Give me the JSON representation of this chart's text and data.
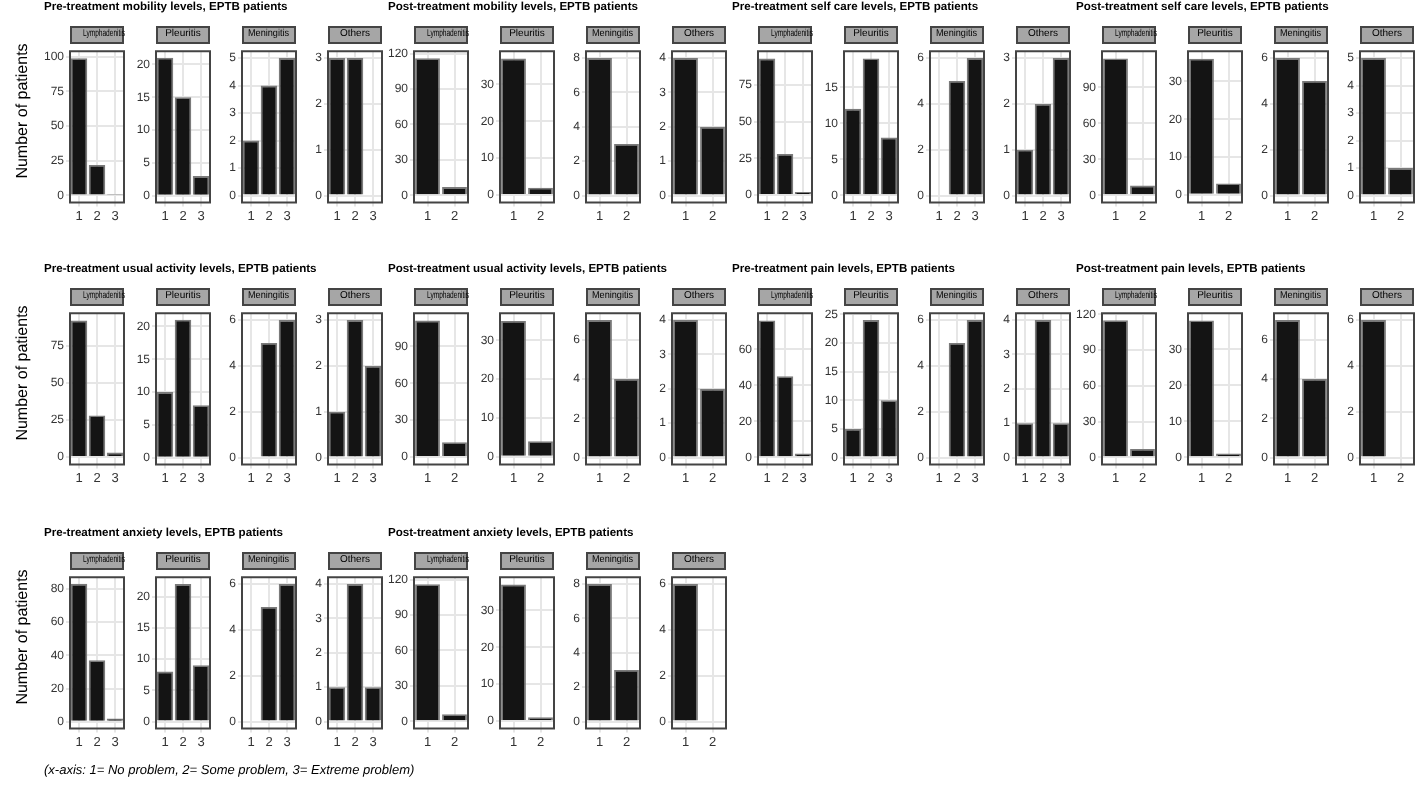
{
  "chart_data": [
    {
      "type": "bar",
      "title": "Pre-treatment mobility levels, EPTB patients",
      "subtitle": "Lymphadenitis",
      "ylabel": "Number of patients",
      "categories": [
        "1",
        "2",
        "3"
      ],
      "values": [
        99,
        22,
        1
      ],
      "color": "#141414",
      "ylim": [
        -5,
        104
      ],
      "yticks": [
        0,
        25,
        50,
        75,
        100
      ],
      "grid": true
    },
    {
      "type": "bar",
      "subtitle": "Pleuritis",
      "categories": [
        "1",
        "2",
        "3"
      ],
      "values": [
        21,
        15,
        3
      ],
      "color": "#141414",
      "ylim": [
        -1,
        22
      ],
      "yticks": [
        0,
        5,
        10,
        15,
        20
      ],
      "grid": true
    },
    {
      "type": "bar",
      "subtitle": "Meningitis",
      "categories": [
        "1",
        "2",
        "3"
      ],
      "values": [
        2,
        4,
        5
      ],
      "color": "#141414",
      "ylim": [
        -0.25,
        5.25
      ],
      "yticks": [
        0,
        1,
        2,
        3,
        4,
        5
      ],
      "grid": true
    },
    {
      "type": "bar",
      "subtitle": "Others",
      "categories": [
        "1",
        "2",
        "3"
      ],
      "values": [
        3,
        3,
        null
      ],
      "color": "#141414",
      "ylim": [
        -0.15,
        3.15
      ],
      "yticks": [
        0,
        1,
        2,
        3
      ],
      "grid": true
    },
    {
      "type": "bar",
      "title": "Post-treatment mobility levels, EPTB patients",
      "subtitle": "Lymphadenitis",
      "categories": [
        "1",
        "2"
      ],
      "values": [
        116,
        7
      ],
      "color": "#141414",
      "ylim": [
        -6,
        122
      ],
      "yticks": [
        0,
        30,
        60,
        90,
        120
      ],
      "grid": true
    },
    {
      "type": "bar",
      "subtitle": "Pleuritis",
      "categories": [
        "1",
        "2"
      ],
      "values": [
        37,
        2
      ],
      "color": "#141414",
      "ylim": [
        -2,
        39
      ],
      "yticks": [
        0,
        10,
        20,
        30
      ],
      "grid": true
    },
    {
      "type": "bar",
      "subtitle": "Meningitis",
      "categories": [
        "1",
        "2"
      ],
      "values": [
        8,
        3
      ],
      "color": "#141414",
      "ylim": [
        -0.4,
        8.4
      ],
      "yticks": [
        0,
        2,
        4,
        6,
        8
      ],
      "grid": true
    },
    {
      "type": "bar",
      "subtitle": "Others",
      "categories": [
        "1",
        "2"
      ],
      "values": [
        4,
        2
      ],
      "color": "#141414",
      "ylim": [
        -0.2,
        4.2
      ],
      "yticks": [
        0,
        1,
        2,
        3,
        4
      ],
      "grid": true
    },
    {
      "type": "bar",
      "title": "Pre-treatment self care levels, EPTB patients",
      "subtitle": "Lymphadenitis",
      "categories": [
        "1",
        "2",
        "3"
      ],
      "values": [
        93,
        28,
        2
      ],
      "color": "#141414",
      "ylim": [
        -5,
        98
      ],
      "yticks": [
        0,
        25,
        50,
        75
      ],
      "grid": true
    },
    {
      "type": "bar",
      "subtitle": "Pleuritis",
      "categories": [
        "1",
        "2",
        "3"
      ],
      "values": [
        12,
        19,
        8
      ],
      "color": "#141414",
      "ylim": [
        -1,
        20
      ],
      "yticks": [
        0,
        5,
        10,
        15
      ],
      "grid": true
    },
    {
      "type": "bar",
      "subtitle": "Meningitis",
      "categories": [
        "1",
        "2",
        "3"
      ],
      "values": [
        null,
        5,
        6
      ],
      "color": "#141414",
      "ylim": [
        -0.3,
        6.3
      ],
      "yticks": [
        0,
        2,
        4,
        6
      ],
      "grid": true
    },
    {
      "type": "bar",
      "subtitle": "Others",
      "categories": [
        "1",
        "2",
        "3"
      ],
      "values": [
        1,
        2,
        3
      ],
      "color": "#141414",
      "ylim": [
        -0.15,
        3.15
      ],
      "yticks": [
        0,
        1,
        2,
        3
      ],
      "grid": true
    },
    {
      "type": "bar",
      "title": "Post-treatment self care levels, EPTB patients",
      "subtitle": "Lymphadenitis",
      "categories": [
        "1",
        "2"
      ],
      "values": [
        114,
        8
      ],
      "color": "#141414",
      "ylim": [
        -6,
        120
      ],
      "yticks": [
        0,
        30,
        60,
        90
      ],
      "grid": true
    },
    {
      "type": "bar",
      "subtitle": "Pleuritis",
      "categories": [
        "1",
        "2"
      ],
      "values": [
        36,
        3
      ],
      "color": "#141414",
      "ylim": [
        -2,
        38
      ],
      "yticks": [
        0,
        10,
        20,
        30
      ],
      "grid": true
    },
    {
      "type": "bar",
      "subtitle": "Meningitis",
      "categories": [
        "1",
        "2"
      ],
      "values": [
        6,
        5
      ],
      "color": "#141414",
      "ylim": [
        -0.3,
        6.3
      ],
      "yticks": [
        0,
        2,
        4,
        6
      ],
      "grid": true
    },
    {
      "type": "bar",
      "subtitle": "Others",
      "categories": [
        "1",
        "2"
      ],
      "values": [
        5,
        1
      ],
      "color": "#141414",
      "ylim": [
        -0.25,
        5.25
      ],
      "yticks": [
        0,
        1,
        2,
        3,
        4,
        5
      ],
      "grid": true
    },
    {
      "type": "bar",
      "title": "Pre-treatment usual activity levels, EPTB patients",
      "subtitle": "Lymphadenitis",
      "ylabel": "Number of patients",
      "categories": [
        "1",
        "2",
        "3"
      ],
      "values": [
        92,
        28,
        3
      ],
      "color": "#141414",
      "ylim": [
        -5,
        97
      ],
      "yticks": [
        0,
        25,
        50,
        75
      ],
      "grid": true
    },
    {
      "type": "bar",
      "subtitle": "Pleuritis",
      "categories": [
        "1",
        "2",
        "3"
      ],
      "values": [
        10,
        21,
        8
      ],
      "color": "#141414",
      "ylim": [
        -1,
        22
      ],
      "yticks": [
        0,
        5,
        10,
        15,
        20
      ],
      "grid": true
    },
    {
      "type": "bar",
      "subtitle": "Meningitis",
      "categories": [
        "1",
        "2",
        "3"
      ],
      "values": [
        null,
        5,
        6
      ],
      "color": "#141414",
      "ylim": [
        -0.3,
        6.3
      ],
      "yticks": [
        0,
        2,
        4,
        6
      ],
      "grid": true
    },
    {
      "type": "bar",
      "subtitle": "Others",
      "categories": [
        "1",
        "2",
        "3"
      ],
      "values": [
        1,
        3,
        2
      ],
      "color": "#141414",
      "ylim": [
        -0.15,
        3.15
      ],
      "yticks": [
        0,
        1,
        2,
        3
      ],
      "grid": true
    },
    {
      "type": "bar",
      "title": "Post-treatment usual activity levels, EPTB patients",
      "subtitle": "Lymphadenitis",
      "categories": [
        "1",
        "2"
      ],
      "values": [
        111,
        12
      ],
      "color": "#141414",
      "ylim": [
        -6,
        117
      ],
      "yticks": [
        0,
        30,
        60,
        90
      ],
      "grid": true
    },
    {
      "type": "bar",
      "subtitle": "Pleuritis",
      "categories": [
        "1",
        "2"
      ],
      "values": [
        35,
        4
      ],
      "color": "#141414",
      "ylim": [
        -2,
        37
      ],
      "yticks": [
        0,
        10,
        20,
        30
      ],
      "grid": true
    },
    {
      "type": "bar",
      "subtitle": "Meningitis",
      "categories": [
        "1",
        "2"
      ],
      "values": [
        7,
        4
      ],
      "color": "#141414",
      "ylim": [
        -0.35,
        7.35
      ],
      "yticks": [
        0,
        2,
        4,
        6
      ],
      "grid": true
    },
    {
      "type": "bar",
      "subtitle": "Others",
      "categories": [
        "1",
        "2"
      ],
      "values": [
        4,
        2
      ],
      "color": "#141414",
      "ylim": [
        -0.2,
        4.2
      ],
      "yticks": [
        0,
        1,
        2,
        3,
        4
      ],
      "grid": true
    },
    {
      "type": "bar",
      "title": "Pre-treatment pain levels, EPTB patients",
      "subtitle": "Lymphadenitis",
      "categories": [
        "1",
        "2",
        "3"
      ],
      "values": [
        76,
        45,
        2
      ],
      "color": "#141414",
      "ylim": [
        -4,
        80
      ],
      "yticks": [
        0,
        20,
        40,
        60
      ],
      "grid": true
    },
    {
      "type": "bar",
      "subtitle": "Pleuritis",
      "categories": [
        "1",
        "2",
        "3"
      ],
      "values": [
        5,
        24,
        10
      ],
      "color": "#141414",
      "ylim": [
        -1.2,
        25.2
      ],
      "yticks": [
        0,
        5,
        10,
        15,
        20,
        25
      ],
      "grid": true
    },
    {
      "type": "bar",
      "subtitle": "Meningitis",
      "categories": [
        "1",
        "2",
        "3"
      ],
      "values": [
        null,
        5,
        6
      ],
      "color": "#141414",
      "ylim": [
        -0.3,
        6.3
      ],
      "yticks": [
        0,
        2,
        4,
        6
      ],
      "grid": true
    },
    {
      "type": "bar",
      "subtitle": "Others",
      "categories": [
        "1",
        "2",
        "3"
      ],
      "values": [
        1,
        4,
        1
      ],
      "color": "#141414",
      "ylim": [
        -0.2,
        4.2
      ],
      "yticks": [
        0,
        1,
        2,
        3,
        4
      ],
      "grid": true
    },
    {
      "type": "bar",
      "title": "Post-treatment pain levels, EPTB patients",
      "subtitle": "Lymphadenitis",
      "categories": [
        "1",
        "2"
      ],
      "values": [
        115,
        7
      ],
      "color": "#141414",
      "ylim": [
        -6,
        121
      ],
      "yticks": [
        0,
        30,
        60,
        90,
        120
      ],
      "grid": true
    },
    {
      "type": "bar",
      "subtitle": "Pleuritis",
      "categories": [
        "1",
        "2"
      ],
      "values": [
        38,
        1
      ],
      "color": "#141414",
      "ylim": [
        -2,
        40
      ],
      "yticks": [
        0,
        10,
        20,
        30
      ],
      "grid": true
    },
    {
      "type": "bar",
      "subtitle": "Meningitis",
      "categories": [
        "1",
        "2"
      ],
      "values": [
        7,
        4
      ],
      "color": "#141414",
      "ylim": [
        -0.35,
        7.35
      ],
      "yticks": [
        0,
        2,
        4,
        6
      ],
      "grid": true
    },
    {
      "type": "bar",
      "subtitle": "Others",
      "categories": [
        "1",
        "2"
      ],
      "values": [
        6,
        null
      ],
      "color": "#141414",
      "ylim": [
        -0.3,
        6.3
      ],
      "yticks": [
        0,
        2,
        4,
        6
      ],
      "grid": true
    },
    {
      "type": "bar",
      "title": "Pre-treatment anxiety levels, EPTB patients",
      "subtitle": "Lymphadenitis",
      "ylabel": "Number of patients",
      "categories": [
        "1",
        "2",
        "3"
      ],
      "values": [
        83,
        37,
        2
      ],
      "color": "#141414",
      "ylim": [
        -4,
        87
      ],
      "yticks": [
        0,
        20,
        40,
        60,
        80
      ],
      "grid": true,
      "annotations": [
        "(x-axis: 1= No problem, 2= Some problem, 3= Extreme problem)"
      ]
    },
    {
      "type": "bar",
      "subtitle": "Pleuritis",
      "categories": [
        "1",
        "2",
        "3"
      ],
      "values": [
        8,
        22,
        9
      ],
      "color": "#141414",
      "ylim": [
        -1.1,
        23.1
      ],
      "yticks": [
        0,
        5,
        10,
        15,
        20
      ],
      "grid": true
    },
    {
      "type": "bar",
      "subtitle": "Meningitis",
      "categories": [
        "1",
        "2",
        "3"
      ],
      "values": [
        null,
        5,
        6
      ],
      "color": "#141414",
      "ylim": [
        -0.3,
        6.3
      ],
      "yticks": [
        0,
        2,
        4,
        6
      ],
      "grid": true
    },
    {
      "type": "bar",
      "subtitle": "Others",
      "categories": [
        "1",
        "2",
        "3"
      ],
      "values": [
        1,
        4,
        1
      ],
      "color": "#141414",
      "ylim": [
        -0.2,
        4.2
      ],
      "yticks": [
        0,
        1,
        2,
        3,
        4
      ],
      "grid": true
    },
    {
      "type": "bar",
      "title": "Post-treatment anxiety levels, EPTB patients",
      "subtitle": "Lymphadenitis",
      "categories": [
        "1",
        "2"
      ],
      "values": [
        116,
        6
      ],
      "color": "#141414",
      "ylim": [
        -6,
        122
      ],
      "yticks": [
        0,
        30,
        60,
        90,
        120
      ],
      "grid": true
    },
    {
      "type": "bar",
      "subtitle": "Pleuritis",
      "categories": [
        "1",
        "2"
      ],
      "values": [
        37,
        1
      ],
      "color": "#141414",
      "ylim": [
        -2,
        39
      ],
      "yticks": [
        0,
        10,
        20,
        30
      ],
      "grid": true
    },
    {
      "type": "bar",
      "subtitle": "Meningitis",
      "categories": [
        "1",
        "2"
      ],
      "values": [
        8,
        3
      ],
      "color": "#141414",
      "ylim": [
        -0.4,
        8.4
      ],
      "yticks": [
        0,
        2,
        4,
        6,
        8
      ],
      "grid": true
    },
    {
      "type": "bar",
      "subtitle": "Others",
      "categories": [
        "1",
        "2"
      ],
      "values": [
        6,
        null
      ],
      "color": "#141414",
      "ylim": [
        -0.3,
        6.3
      ],
      "yticks": [
        0,
        2,
        4,
        6
      ],
      "grid": true
    }
  ]
}
